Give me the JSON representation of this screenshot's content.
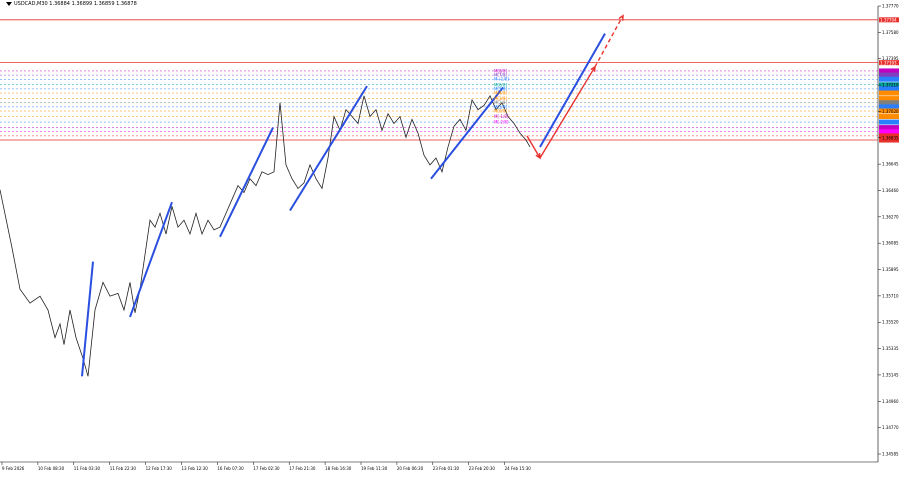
{
  "chart_data": {
    "type": "line",
    "title": "USDCAD,M30 1.36884 1.36899 1.36859 1.36878",
    "x_tick_labels": [
      "9 Feb 2026",
      "10 Feb 08:30",
      "11 Feb 03:30",
      "11 Feb 22:30",
      "12 Feb 17:30",
      "13 Feb 12:30",
      "16 Feb 07:30",
      "17 Feb 02:30",
      "17 Feb 21:30",
      "18 Feb 16:30",
      "19 Feb 11:30",
      "20 Feb 06:30",
      "23 Feb 01:30",
      "23 Feb 20:30",
      "24 Feb 15:30"
    ],
    "y_tick_labels": [
      "1.37770",
      "1.37580",
      "1.37395",
      "1.37210",
      "1.37020",
      "1.36835",
      "1.36645",
      "1.36460",
      "1.36270",
      "1.36085",
      "1.35895",
      "1.35710",
      "1.35520",
      "1.35335",
      "1.35145",
      "1.34960",
      "1.34770",
      "1.34585"
    ],
    "ylim": [
      1.345,
      1.378
    ],
    "price_series": {
      "name": "USDCAD",
      "x": [
        0,
        12,
        20,
        30,
        40,
        48,
        55,
        60,
        64,
        70,
        76,
        83,
        88,
        95,
        103,
        110,
        118,
        124,
        130,
        135,
        140,
        145,
        150,
        155,
        160,
        166,
        172,
        178,
        184,
        190,
        196,
        202,
        208,
        214,
        220,
        226,
        232,
        238,
        244,
        250,
        256,
        262,
        268,
        274,
        280,
        286,
        292,
        298,
        304,
        310,
        316,
        322,
        328,
        334,
        340,
        346,
        352,
        358,
        364,
        370,
        376,
        382,
        388,
        394,
        400,
        406,
        412,
        418,
        424,
        430,
        436,
        442,
        448,
        454,
        460,
        466,
        472,
        478,
        484,
        490,
        496,
        502,
        508,
        514,
        520,
        526,
        530
      ],
      "y": [
        1.3647,
        1.3605,
        1.3575,
        1.3565,
        1.357,
        1.356,
        1.354,
        1.355,
        1.3535,
        1.356,
        1.354,
        1.3525,
        1.3512,
        1.356,
        1.358,
        1.357,
        1.3572,
        1.356,
        1.358,
        1.3558,
        1.3575,
        1.36,
        1.3625,
        1.362,
        1.363,
        1.3615,
        1.3635,
        1.362,
        1.3625,
        1.3615,
        1.363,
        1.3615,
        1.3625,
        1.3618,
        1.362,
        1.363,
        1.364,
        1.365,
        1.3645,
        1.3655,
        1.365,
        1.366,
        1.3658,
        1.366,
        1.371,
        1.3665,
        1.3655,
        1.3648,
        1.3652,
        1.3665,
        1.3655,
        1.3648,
        1.367,
        1.37,
        1.369,
        1.3705,
        1.37,
        1.3695,
        1.3715,
        1.37,
        1.3705,
        1.369,
        1.3702,
        1.3695,
        1.37,
        1.3685,
        1.3698,
        1.3688,
        1.3672,
        1.3665,
        1.367,
        1.366,
        1.3678,
        1.3693,
        1.3698,
        1.369,
        1.3712,
        1.3705,
        1.3708,
        1.3715,
        1.3705,
        1.371,
        1.37,
        1.3695,
        1.3688,
        1.3683,
        1.3678
      ]
    },
    "trend_lines_blue": [
      {
        "x": [
          82,
          93
        ],
        "y": [
          1.3512,
          1.3595
        ]
      },
      {
        "x": [
          130,
          172
        ],
        "y": [
          1.3555,
          1.3638
        ]
      },
      {
        "x": [
          220,
          273
        ],
        "y": [
          1.3613,
          1.3692
        ]
      },
      {
        "x": [
          290,
          367
        ],
        "y": [
          1.3632,
          1.3722
        ]
      },
      {
        "x": [
          431,
          503
        ],
        "y": [
          1.3655,
          1.3721
        ]
      },
      {
        "x": [
          540,
          605
        ],
        "y": [
          1.3678,
          1.376
        ]
      }
    ],
    "forecast_lines_red": [
      {
        "x": [
          527,
          540
        ],
        "y": [
          1.3686,
          1.367
        ],
        "style": "solid"
      },
      {
        "x": [
          540,
          595
        ],
        "y": [
          1.367,
          1.3736
        ],
        "style": "solid"
      },
      {
        "x": [
          595,
          623
        ],
        "y": [
          1.3736,
          1.3773
        ],
        "style": "dashed"
      }
    ],
    "horizontal_levels": [
      {
        "y": 1.377,
        "color": "#e8312d",
        "label": "1.37704",
        "line": "solid"
      },
      {
        "y": 1.3739,
        "color": "#e8312d",
        "label": "1.37393",
        "line": "solid"
      },
      {
        "y": 1.3733,
        "color": "#c000c0",
        "label": "",
        "line": "dotted"
      },
      {
        "y": 1.373,
        "color": "#7f3fbf",
        "label": "",
        "line": "dotted"
      },
      {
        "y": 1.3727,
        "color": "#2a7fff",
        "label": "",
        "line": "dotted"
      },
      {
        "y": 1.3723,
        "color": "#00a0a0",
        "label": "",
        "line": "dotted"
      },
      {
        "y": 1.372,
        "color": "#2a7fff",
        "label": "",
        "line": "dotted"
      },
      {
        "y": 1.3717,
        "color": "#ff8c00",
        "label": "",
        "line": "dotted"
      },
      {
        "y": 1.3713,
        "color": "#ff8c00",
        "label": "",
        "line": "dotted"
      },
      {
        "y": 1.371,
        "color": "#808080",
        "label": "",
        "line": "dotted"
      },
      {
        "y": 1.3707,
        "color": "#2a7fff",
        "label": "",
        "line": "dotted"
      },
      {
        "y": 1.3704,
        "color": "#ff8c00",
        "label": "",
        "line": "dotted"
      },
      {
        "y": 1.37,
        "color": "#ff8c00",
        "label": "",
        "line": "dotted"
      },
      {
        "y": 1.3696,
        "color": "#2a7fff",
        "label": "",
        "line": "dotted"
      },
      {
        "y": 1.3692,
        "color": "#c000c0",
        "label": "",
        "line": "dotted"
      },
      {
        "y": 1.3689,
        "color": "#ff00ff",
        "label": "",
        "line": "dotted"
      },
      {
        "y": 1.3686,
        "color": "#e8312d",
        "label": "",
        "line": "dotted"
      },
      {
        "y": 1.3683,
        "color": "#e8312d",
        "label": "",
        "line": "solid"
      }
    ],
    "level_labels": [
      "M[8/8]",
      "M[7/8]",
      "M+1/8]",
      "M[6/8]",
      "M[5/8]",
      "M[4/8]",
      "M[3/8]",
      "M[2/8]",
      "M[1/8]",
      "M[0/8]",
      "M[-1/8]",
      "M[-2/8]"
    ],
    "grid": false,
    "legend": "none"
  }
}
